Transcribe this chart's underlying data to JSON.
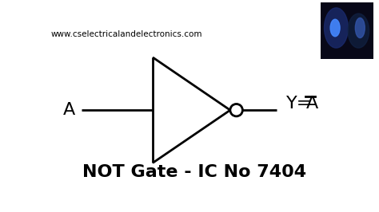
{
  "background_color": "#ffffff",
  "website_text": "www.cselectricalandelectronics.com",
  "website_fontsize": 7.5,
  "website_color": "#000000",
  "title_text": "NOT Gate - IC No 7404",
  "title_fontsize": 16,
  "title_color": "#000000",
  "label_A_text": "A",
  "label_A_fontsize": 16,
  "label_Y_text": "Y=",
  "label_Abar_text": "A",
  "label_fontsize": 16,
  "line_color": "#000000",
  "line_width": 2.0,
  "logo_bg": "#0a0a2a",
  "logo_text_color": "#3366cc"
}
